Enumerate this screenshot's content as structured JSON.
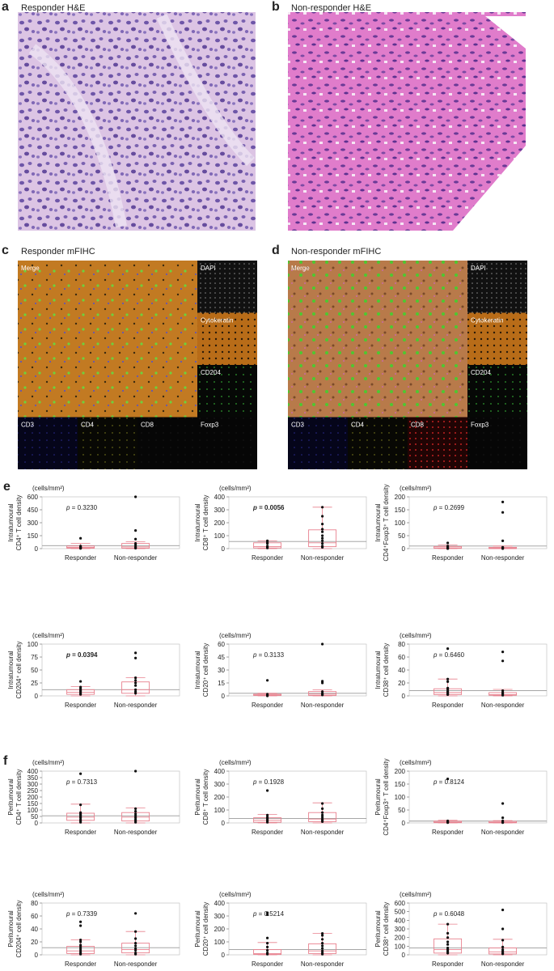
{
  "panels": [
    {
      "letter": "a",
      "title": "Responder H&E"
    },
    {
      "letter": "b",
      "title": "Non-responder H&E"
    },
    {
      "letter": "c",
      "title": "Responder mFIHC",
      "tiles": [
        "Merge",
        "DAPI",
        "Cytokeratin",
        "CD204",
        "CD3",
        "CD4",
        "CD8",
        "Foxp3"
      ]
    },
    {
      "letter": "d",
      "title": "Non-responder mFIHC",
      "tiles": [
        "Merge",
        "DAPI",
        "Cytokeratin",
        "CD204",
        "CD3",
        "CD4",
        "CD8",
        "Foxp3"
      ]
    }
  ],
  "section_labels": [
    "e",
    "f"
  ],
  "chart_data": [
    {
      "type": "box",
      "region": "Intratumoural",
      "marker": "CD4⁺ T cell density",
      "unit": "(cells/mm²)",
      "p_label": "p",
      "p_text": " = 0.3230",
      "bold": false,
      "ylim": [
        0,
        600
      ],
      "yticks": [
        0,
        150,
        300,
        450,
        600
      ],
      "cutoff": 35,
      "categories": [
        "Responder",
        "Non-responder"
      ],
      "groups": [
        {
          "q1": 5,
          "median": 15,
          "q3": 30,
          "whisker_low": 0,
          "whisker_high": 60,
          "points": [
            120,
            30,
            20,
            15,
            10,
            5,
            2
          ]
        },
        {
          "q1": 5,
          "median": 20,
          "q3": 60,
          "whisker_low": 0,
          "whisker_high": 80,
          "points": [
            600,
            210,
            110,
            60,
            40,
            20,
            10,
            5
          ]
        }
      ]
    },
    {
      "type": "box",
      "region": "Intratumoural",
      "marker": "CD8⁺ T cell density",
      "unit": "(cells/mm²)",
      "p_label": "p",
      "p_text": " = 0.0056",
      "bold": true,
      "ylim": [
        0,
        400
      ],
      "yticks": [
        0,
        100,
        200,
        300,
        400
      ],
      "cutoff": 55,
      "categories": [
        "Responder",
        "Non-responder"
      ],
      "groups": [
        {
          "q1": 5,
          "median": 15,
          "q3": 45,
          "whisker_low": 0,
          "whisker_high": 60,
          "points": [
            60,
            50,
            40,
            20,
            10,
            5
          ]
        },
        {
          "q1": 15,
          "median": 45,
          "q3": 145,
          "whisker_low": 0,
          "whisker_high": 320,
          "points": [
            320,
            250,
            190,
            150,
            130,
            100,
            80,
            60,
            40,
            20,
            10
          ]
        }
      ]
    },
    {
      "type": "box",
      "region": "Intratumoural",
      "marker": "CD4⁺Foxp3⁺ T cell density",
      "unit": "(cells/mm²)",
      "p_label": "p",
      "p_text": " = 0.2699",
      "bold": false,
      "ylim": [
        0,
        200
      ],
      "yticks": [
        0,
        50,
        100,
        150,
        200
      ],
      "cutoff": 10,
      "categories": [
        "Responder",
        "Non-responder"
      ],
      "groups": [
        {
          "q1": 1,
          "median": 3,
          "q3": 8,
          "whisker_low": 0,
          "whisker_high": 14,
          "points": [
            22,
            10,
            5,
            2,
            0
          ]
        },
        {
          "q1": 0,
          "median": 2,
          "q3": 5,
          "whisker_low": 0,
          "whisker_high": 10,
          "points": [
            180,
            140,
            30,
            5,
            2,
            0
          ]
        }
      ]
    },
    {
      "type": "box",
      "region": "Intratumoural",
      "marker": "CD204⁺ cell density",
      "unit": "(cells/mm²)",
      "p_label": "p",
      "p_text": " = 0.0394",
      "bold": true,
      "ylim": [
        0,
        100
      ],
      "yticks": [
        0,
        25,
        50,
        75,
        100
      ],
      "cutoff": 12,
      "categories": [
        "Responder",
        "Non-responder"
      ],
      "groups": [
        {
          "q1": 3,
          "median": 7,
          "q3": 12,
          "whisker_low": 0,
          "whisker_high": 18,
          "points": [
            28,
            17,
            14,
            12,
            10,
            8,
            5,
            3
          ]
        },
        {
          "q1": 5,
          "median": 12,
          "q3": 27,
          "whisker_low": 0,
          "whisker_high": 35,
          "points": [
            83,
            73,
            35,
            30,
            25,
            20,
            12,
            8,
            5
          ]
        }
      ]
    },
    {
      "type": "box",
      "region": "Intratumoural",
      "marker": "CD20⁺ cell density",
      "unit": "(cells/mm²)",
      "p_label": "p",
      "p_text": " = 0.3133",
      "bold": false,
      "ylim": [
        0,
        60
      ],
      "yticks": [
        0,
        15,
        30,
        45,
        60
      ],
      "cutoff": 3,
      "categories": [
        "Responder",
        "Non-responder"
      ],
      "groups": [
        {
          "q1": 0.5,
          "median": 1,
          "q3": 2,
          "whisker_low": 0,
          "whisker_high": 3,
          "points": [
            18,
            2,
            1,
            0
          ]
        },
        {
          "q1": 0.5,
          "median": 2,
          "q3": 5,
          "whisker_low": 0,
          "whisker_high": 7,
          "points": [
            60,
            17,
            15,
            5,
            3,
            2,
            1
          ]
        }
      ]
    },
    {
      "type": "box",
      "region": "Intratumoural",
      "marker": "CD38⁺ cell density",
      "unit": "(cells/mm²)",
      "p_label": "p",
      "p_text": " = 0.6460",
      "bold": false,
      "ylim": [
        0,
        80
      ],
      "yticks": [
        0,
        20,
        40,
        60,
        80
      ],
      "cutoff": 8,
      "categories": [
        "Responder",
        "Non-responder"
      ],
      "groups": [
        {
          "q1": 2,
          "median": 5,
          "q3": 11,
          "whisker_low": 0,
          "whisker_high": 26,
          "points": [
            73,
            26,
            22,
            12,
            10,
            7,
            5,
            3,
            2
          ]
        },
        {
          "q1": 1,
          "median": 2,
          "q3": 5,
          "whisker_low": 0,
          "whisker_high": 10,
          "points": [
            68,
            54,
            8,
            5,
            3,
            1
          ]
        }
      ]
    },
    {
      "type": "box",
      "region": "Peritumoural",
      "marker": "CD4⁺ T cell density",
      "unit": "(cells/mm²)",
      "p_label": "p",
      "p_text": " = 0.7313",
      "bold": false,
      "ylim": [
        0,
        400
      ],
      "yticks": [
        0,
        50,
        100,
        150,
        200,
        250,
        300,
        350,
        400
      ],
      "cutoff": 55,
      "categories": [
        "Responder",
        "Non-responder"
      ],
      "groups": [
        {
          "q1": 20,
          "median": 45,
          "q3": 75,
          "whisker_low": 0,
          "whisker_high": 145,
          "points": [
            380,
            140,
            80,
            70,
            60,
            50,
            40,
            25,
            15,
            5
          ]
        },
        {
          "q1": 15,
          "median": 45,
          "q3": 80,
          "whisker_low": 0,
          "whisker_high": 115,
          "points": [
            400,
            110,
            90,
            70,
            55,
            40,
            25,
            15,
            5
          ]
        }
      ]
    },
    {
      "type": "box",
      "region": "Peritumoural",
      "marker": "CD8⁺ T cell density",
      "unit": "(cells/mm²)",
      "p_label": "p",
      "p_text": " = 0.1928",
      "bold": false,
      "ylim": [
        0,
        400
      ],
      "yticks": [
        0,
        100,
        200,
        300,
        400
      ],
      "cutoff": 35,
      "categories": [
        "Responder",
        "Non-responder"
      ],
      "groups": [
        {
          "q1": 5,
          "median": 20,
          "q3": 40,
          "whisker_low": 0,
          "whisker_high": 65,
          "points": [
            250,
            60,
            45,
            35,
            25,
            15,
            5
          ]
        },
        {
          "q1": 10,
          "median": 30,
          "q3": 80,
          "whisker_low": 0,
          "whisker_high": 155,
          "points": [
            150,
            110,
            80,
            60,
            45,
            30,
            20,
            10
          ]
        }
      ]
    },
    {
      "type": "box",
      "region": "Peritumoural",
      "marker": "CD4⁺Foxp3⁺ T cell density",
      "unit": "(cells/mm²)",
      "p_label": "p",
      "p_text": " = 0.8124",
      "bold": false,
      "ylim": [
        0,
        200
      ],
      "yticks": [
        0,
        50,
        100,
        150,
        200
      ],
      "cutoff": 7,
      "categories": [
        "Responder",
        "Non-responder"
      ],
      "groups": [
        {
          "q1": 1,
          "median": 3,
          "q3": 7,
          "whisker_low": 0,
          "whisker_high": 10,
          "points": [
            170,
            8,
            5,
            3,
            1
          ]
        },
        {
          "q1": 0.5,
          "median": 2,
          "q3": 6,
          "whisker_low": 0,
          "whisker_high": 9,
          "points": [
            75,
            20,
            8,
            3,
            1
          ]
        }
      ]
    },
    {
      "type": "box",
      "region": "Peritumoural",
      "marker": "CD204⁺ cell density",
      "unit": "(cells/mm²)",
      "p_label": "p",
      "p_text": " = 0.7339",
      "bold": false,
      "ylim": [
        0,
        80
      ],
      "yticks": [
        0,
        20,
        40,
        60,
        80
      ],
      "cutoff": 11,
      "categories": [
        "Responder",
        "Non-responder"
      ],
      "groups": [
        {
          "q1": 2,
          "median": 6,
          "q3": 13,
          "whisker_low": 0,
          "whisker_high": 23,
          "points": [
            51,
            45,
            23,
            20,
            15,
            12,
            9,
            6,
            3,
            1
          ]
        },
        {
          "q1": 3,
          "median": 8,
          "q3": 18,
          "whisker_low": 0,
          "whisker_high": 36,
          "points": [
            64,
            36,
            25,
            18,
            14,
            10,
            7,
            3,
            1
          ]
        }
      ]
    },
    {
      "type": "box",
      "region": "Peritumoural",
      "marker": "CD20⁺ cell density",
      "unit": "(cells/mm²)",
      "p_label": "p",
      "p_text": " = 0.5214",
      "bold": false,
      "ylim": [
        0,
        400
      ],
      "yticks": [
        0,
        100,
        200,
        300,
        400
      ],
      "cutoff": 40,
      "categories": [
        "Responder",
        "Non-responder"
      ],
      "groups": [
        {
          "q1": 3,
          "median": 10,
          "q3": 40,
          "whisker_low": 0,
          "whisker_high": 95,
          "points": [
            325,
            310,
            130,
            90,
            60,
            35,
            15,
            5
          ]
        },
        {
          "q1": 10,
          "median": 30,
          "q3": 85,
          "whisker_low": 0,
          "whisker_high": 165,
          "points": [
            165,
            150,
            120,
            90,
            70,
            50,
            30,
            15,
            5
          ]
        }
      ]
    },
    {
      "type": "box",
      "region": "Peritumoural",
      "marker": "CD38⁺ cell density",
      "unit": "(cells/mm²)",
      "p_label": "p",
      "p_text": " = 0.6048",
      "bold": false,
      "ylim": [
        0,
        600
      ],
      "yticks": [
        0,
        100,
        200,
        300,
        400,
        500,
        600
      ],
      "cutoff": 80,
      "categories": [
        "Responder",
        "Non-responder"
      ],
      "groups": [
        {
          "q1": 20,
          "median": 60,
          "q3": 185,
          "whisker_low": 0,
          "whisker_high": 355,
          "points": [
            355,
            250,
            200,
            150,
            120,
            80,
            60,
            40,
            20
          ]
        },
        {
          "q1": 10,
          "median": 35,
          "q3": 80,
          "whisker_low": 0,
          "whisker_high": 180,
          "points": [
            520,
            300,
            170,
            90,
            60,
            40,
            20,
            10
          ]
        }
      ]
    }
  ]
}
